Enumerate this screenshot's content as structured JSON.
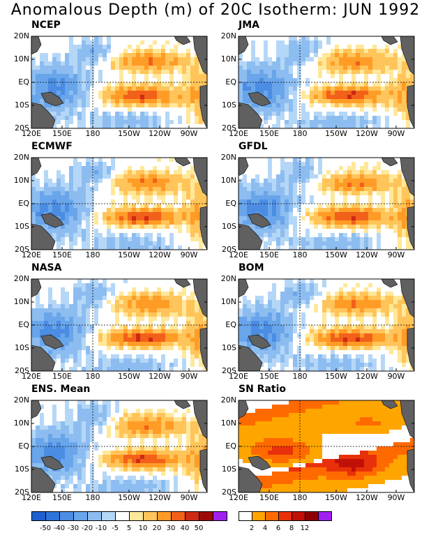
{
  "title": "Anomalous Depth (m) of 20C Isotherm: JUN 1992",
  "lat_labels": [
    "20N",
    "10N",
    "EQ",
    "10S",
    "20S"
  ],
  "lon_labels": [
    "120E",
    "150E",
    "180",
    "150W",
    "120W",
    "90W"
  ],
  "panels": [
    {
      "name": "NCEP",
      "kind": "anom"
    },
    {
      "name": "JMA",
      "kind": "anom"
    },
    {
      "name": "ECMWF",
      "kind": "anom"
    },
    {
      "name": "GFDL",
      "kind": "anom"
    },
    {
      "name": "NASA",
      "kind": "anom"
    },
    {
      "name": "BOM",
      "kind": "anom"
    },
    {
      "name": "ENS. Mean",
      "kind": "anom"
    },
    {
      "name": "SN Ratio",
      "kind": "sn"
    }
  ],
  "colorbar_anom": {
    "labels": [
      "-50",
      "-40",
      "-30",
      "-20",
      "-10",
      "-5",
      "5",
      "10",
      "20",
      "30",
      "40",
      "50"
    ],
    "colors": [
      "#1f5fcf",
      "#2e74d8",
      "#4b8de3",
      "#69a5ea",
      "#8dbdf0",
      "#b5d7f7",
      "#ffffff",
      "#ffe89a",
      "#ffc45a",
      "#ff9c26",
      "#f2601a",
      "#cc2a14",
      "#9c0a0a",
      "#a020f0"
    ]
  },
  "colorbar_sn": {
    "labels": [
      "2",
      "4",
      "6",
      "8",
      "12"
    ],
    "colors": [
      "#ffffff",
      "#ffa500",
      "#ff6a00",
      "#e8300a",
      "#c01008",
      "#8c0000",
      "#a020f0"
    ]
  },
  "land_color": "#606060"
}
